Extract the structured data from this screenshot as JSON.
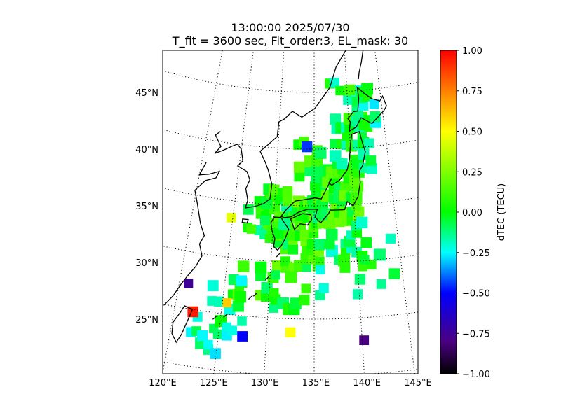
{
  "chart_data": {
    "type": "heatmap",
    "title_lines": [
      "13:00:00 2025/07/30",
      "T_fit = 3600 sec, Fit_order:3, EL_mask: 30"
    ],
    "x_ticks": [
      "120°E",
      "125°E",
      "130°E",
      "135°E",
      "140°E",
      "145°E"
    ],
    "y_ticks": [
      "25°N",
      "30°N",
      "35°N",
      "40°N",
      "45°N"
    ],
    "lon_range": [
      120,
      145
    ],
    "lat_range": [
      20,
      49
    ],
    "grid": "dotted lat/lon graticule",
    "colorbar": {
      "label": "dTEC (TECU)",
      "range": [
        -1.0,
        1.0
      ],
      "ticks": [
        "1.00",
        "0.75",
        "0.50",
        "0.25",
        "0.00",
        "−0.25",
        "−0.50",
        "−0.75",
        "−1.00"
      ],
      "colors": [
        "#000000",
        "#4b0082",
        "#0000ff",
        "#00ffff",
        "#00ff00",
        "#ffff00",
        "#ff0000"
      ]
    },
    "notable_values": [
      {
        "lon": 122.0,
        "lat": 24.8,
        "value": 0.95
      },
      {
        "lon": 140.2,
        "lat": 23.0,
        "value": -0.8
      },
      {
        "lon": 121.0,
        "lat": 27.2,
        "value": -0.75
      },
      {
        "lon": 127.5,
        "lat": 23.2,
        "value": -0.5
      },
      {
        "lon": 132.5,
        "lat": 23.8,
        "value": 0.5
      },
      {
        "lon": 125.5,
        "lat": 26.0,
        "value": 0.6
      },
      {
        "lon": 124.8,
        "lat": 33.5,
        "value": 0.45
      },
      {
        "lon": 134.0,
        "lat": 40.2,
        "value": -0.45
      }
    ]
  }
}
